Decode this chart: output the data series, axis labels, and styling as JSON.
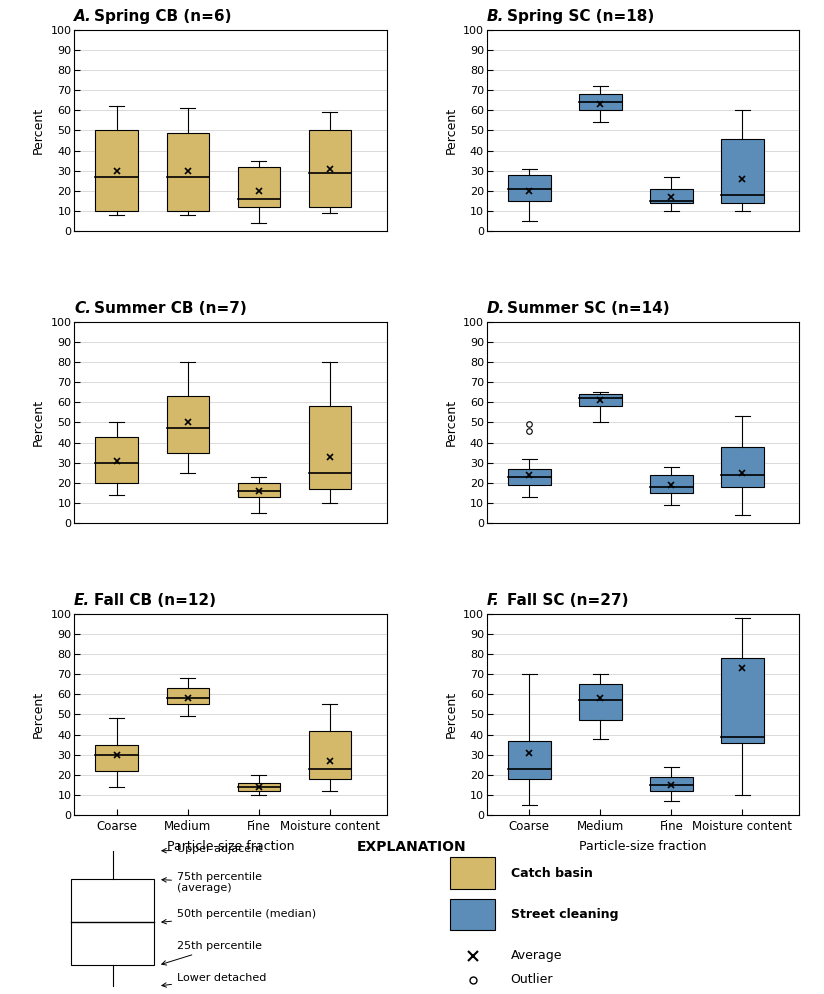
{
  "panels": [
    {
      "title": "A.  Spring CB (n=6)",
      "color": "#D4B96A",
      "boxes": [
        {
          "label": "Coarse",
          "q1": 10,
          "median": 27,
          "q3": 50,
          "whislo": 8,
          "whishi": 62,
          "mean": 30,
          "fliers": []
        },
        {
          "label": "Medium",
          "q1": 10,
          "median": 27,
          "q3": 49,
          "whislo": 8,
          "whishi": 61,
          "mean": 30,
          "fliers": []
        },
        {
          "label": "Fine",
          "q1": 12,
          "median": 16,
          "q3": 32,
          "whislo": 4,
          "whishi": 35,
          "mean": 20,
          "fliers": []
        },
        {
          "label": "Moisture content",
          "q1": 12,
          "median": 29,
          "q3": 50,
          "whislo": 9,
          "whishi": 59,
          "mean": 31,
          "fliers": []
        }
      ]
    },
    {
      "title": "B.  Spring SC (n=18)",
      "color": "#5B8DB8",
      "boxes": [
        {
          "label": "Coarse",
          "q1": 15,
          "median": 21,
          "q3": 28,
          "whislo": 5,
          "whishi": 31,
          "mean": 20,
          "fliers": []
        },
        {
          "label": "Medium",
          "q1": 60,
          "median": 64,
          "q3": 68,
          "whislo": 54,
          "whishi": 72,
          "mean": 63,
          "fliers": []
        },
        {
          "label": "Fine",
          "q1": 14,
          "median": 15,
          "q3": 21,
          "whislo": 10,
          "whishi": 27,
          "mean": 17,
          "fliers": []
        },
        {
          "label": "Moisture content",
          "q1": 14,
          "median": 18,
          "q3": 46,
          "whislo": 10,
          "whishi": 60,
          "mean": 26,
          "fliers": []
        }
      ]
    },
    {
      "title": "C.  Summer CB (n=7)",
      "color": "#D4B96A",
      "boxes": [
        {
          "label": "Coarse",
          "q1": 20,
          "median": 30,
          "q3": 43,
          "whislo": 14,
          "whishi": 50,
          "mean": 31,
          "fliers": []
        },
        {
          "label": "Medium",
          "q1": 35,
          "median": 47,
          "q3": 63,
          "whislo": 25,
          "whishi": 80,
          "mean": 50,
          "fliers": []
        },
        {
          "label": "Fine",
          "q1": 13,
          "median": 16,
          "q3": 20,
          "whislo": 5,
          "whishi": 23,
          "mean": 16,
          "fliers": []
        },
        {
          "label": "Moisture content",
          "q1": 17,
          "median": 25,
          "q3": 58,
          "whislo": 10,
          "whishi": 80,
          "mean": 33,
          "fliers": []
        }
      ]
    },
    {
      "title": "D.  Summer SC (n=14)",
      "color": "#5B8DB8",
      "boxes": [
        {
          "label": "Coarse",
          "q1": 19,
          "median": 23,
          "q3": 27,
          "whislo": 13,
          "whishi": 32,
          "mean": 24,
          "fliers": [
            46,
            49
          ]
        },
        {
          "label": "Medium",
          "q1": 58,
          "median": 62,
          "q3": 64,
          "whislo": 50,
          "whishi": 65,
          "mean": 61,
          "fliers": []
        },
        {
          "label": "Fine",
          "q1": 15,
          "median": 18,
          "q3": 24,
          "whislo": 9,
          "whishi": 28,
          "mean": 19,
          "fliers": []
        },
        {
          "label": "Moisture content",
          "q1": 18,
          "median": 24,
          "q3": 38,
          "whislo": 4,
          "whishi": 53,
          "mean": 25,
          "fliers": []
        }
      ]
    },
    {
      "title": "E.  Fall CB (n=12)",
      "color": "#D4B96A",
      "boxes": [
        {
          "label": "Coarse",
          "q1": 22,
          "median": 30,
          "q3": 35,
          "whislo": 14,
          "whishi": 48,
          "mean": 30,
          "fliers": []
        },
        {
          "label": "Medium",
          "q1": 55,
          "median": 58,
          "q3": 63,
          "whislo": 49,
          "whishi": 68,
          "mean": 58,
          "fliers": []
        },
        {
          "label": "Fine",
          "q1": 12,
          "median": 14,
          "q3": 16,
          "whislo": 10,
          "whishi": 20,
          "mean": 14,
          "fliers": []
        },
        {
          "label": "Moisture content",
          "q1": 18,
          "median": 23,
          "q3": 42,
          "whislo": 12,
          "whishi": 55,
          "mean": 27,
          "fliers": []
        }
      ]
    },
    {
      "title": "F.  Fall SC (n=27)",
      "color": "#5B8DB8",
      "boxes": [
        {
          "label": "Coarse",
          "q1": 18,
          "median": 23,
          "q3": 37,
          "whislo": 5,
          "whishi": 70,
          "mean": 31,
          "fliers": []
        },
        {
          "label": "Medium",
          "q1": 47,
          "median": 57,
          "q3": 65,
          "whislo": 38,
          "whishi": 70,
          "mean": 58,
          "fliers": []
        },
        {
          "label": "Fine",
          "q1": 12,
          "median": 15,
          "q3": 19,
          "whislo": 7,
          "whishi": 24,
          "mean": 15,
          "fliers": []
        },
        {
          "label": "Moisture content",
          "q1": 36,
          "median": 39,
          "q3": 78,
          "whislo": 10,
          "whishi": 98,
          "mean": 73,
          "fliers": []
        }
      ]
    }
  ],
  "xlabel": "Particle-size fraction",
  "ylabel": "Percent",
  "ylim": [
    0,
    100
  ],
  "yticks": [
    0,
    10,
    20,
    30,
    40,
    50,
    60,
    70,
    80,
    90,
    100
  ],
  "categories": [
    "Coarse",
    "Medium",
    "Fine",
    "Moisture content"
  ],
  "cb_color": "#D4B96A",
  "sc_color": "#5B8DB8"
}
